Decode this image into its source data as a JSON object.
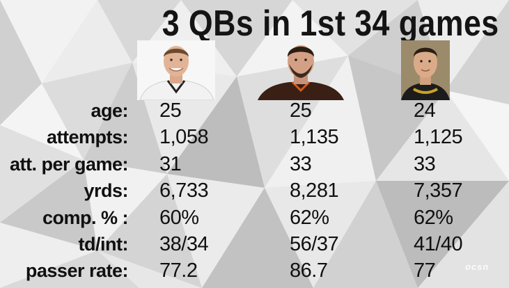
{
  "title": "3 QBs in 1st 34 games",
  "players": [
    {
      "icon": "qb-headshot-white-jersey-icon",
      "jersey_color": "#f2f2f2"
    },
    {
      "icon": "qb-headshot-brown-jersey-icon",
      "jersey_color": "#3a1f14"
    },
    {
      "icon": "qb-headshot-black-gold-jersey-icon",
      "jersey_color": "#1c1c1c"
    }
  ],
  "stats": [
    {
      "label": "age:",
      "values": [
        "25",
        "25",
        "24"
      ]
    },
    {
      "label": "attempts:",
      "values": [
        "1,058",
        "1,135",
        "1,125"
      ]
    },
    {
      "label": "att. per game:",
      "values": [
        "31",
        "33",
        "33"
      ]
    },
    {
      "label": "yrds:",
      "values": [
        "6,733",
        "8,281",
        "7,357"
      ]
    },
    {
      "label": "comp. % :",
      "values": [
        "60%",
        "62%",
        "62%"
      ]
    },
    {
      "label": "td/int:",
      "values": [
        "38/34",
        "56/37",
        "41/40"
      ]
    },
    {
      "label": "passer rate:",
      "values": [
        "77.2",
        "86.7",
        "77"
      ]
    }
  ],
  "watermark": "ocsn",
  "colors": {
    "text": "#101010",
    "background": "#e6e6e6"
  }
}
